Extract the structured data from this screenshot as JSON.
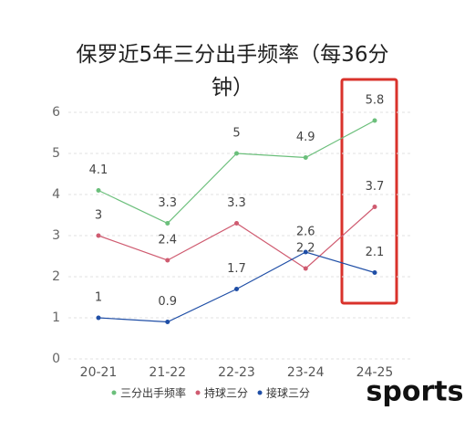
{
  "chart_data": {
    "type": "line",
    "title": "保罗近5年三分出手频率（每36分钟）",
    "categories": [
      "20-21",
      "21-22",
      "22-23",
      "23-24",
      "24-25"
    ],
    "series": [
      {
        "name": "三分出手频率",
        "color": "#6bbf7b",
        "values": [
          4.1,
          3.3,
          5,
          4.9,
          5.8
        ]
      },
      {
        "name": "持球三分",
        "color": "#cf5b70",
        "values": [
          3,
          2.4,
          3.3,
          2.2,
          3.7
        ]
      },
      {
        "name": "接球三分",
        "color": "#1f4ea6",
        "values": [
          1,
          0.9,
          1.7,
          2.6,
          2.1
        ]
      }
    ],
    "ylim": [
      0,
      6
    ],
    "yticks": [
      0,
      1,
      2,
      3,
      4,
      5,
      6
    ],
    "grid": true,
    "watermark": "sports"
  }
}
